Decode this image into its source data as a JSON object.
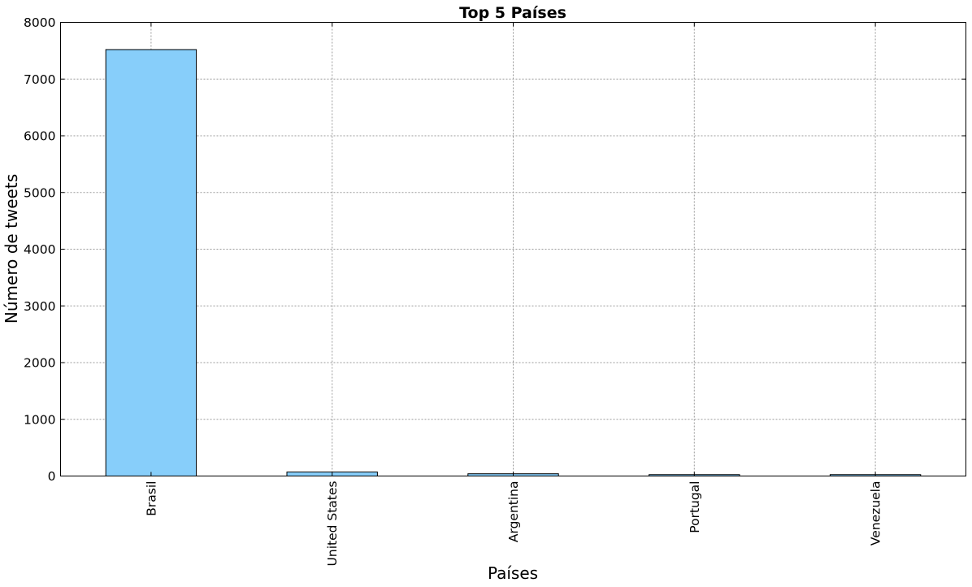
{
  "chart_data": {
    "type": "bar",
    "title": "Top 5 Países",
    "xlabel": "Países",
    "ylabel": "Número de tweets",
    "categories": [
      "Brasil",
      "United States",
      "Argentina",
      "Portugal",
      "Venezuela"
    ],
    "values": [
      7520,
      70,
      40,
      25,
      25
    ],
    "ylim": [
      0,
      8000
    ],
    "yticks": [
      0,
      1000,
      2000,
      3000,
      4000,
      5000,
      6000,
      7000,
      8000
    ],
    "grid": true,
    "bar_color": "#87cefa",
    "x_tick_rotation": "vertical"
  }
}
